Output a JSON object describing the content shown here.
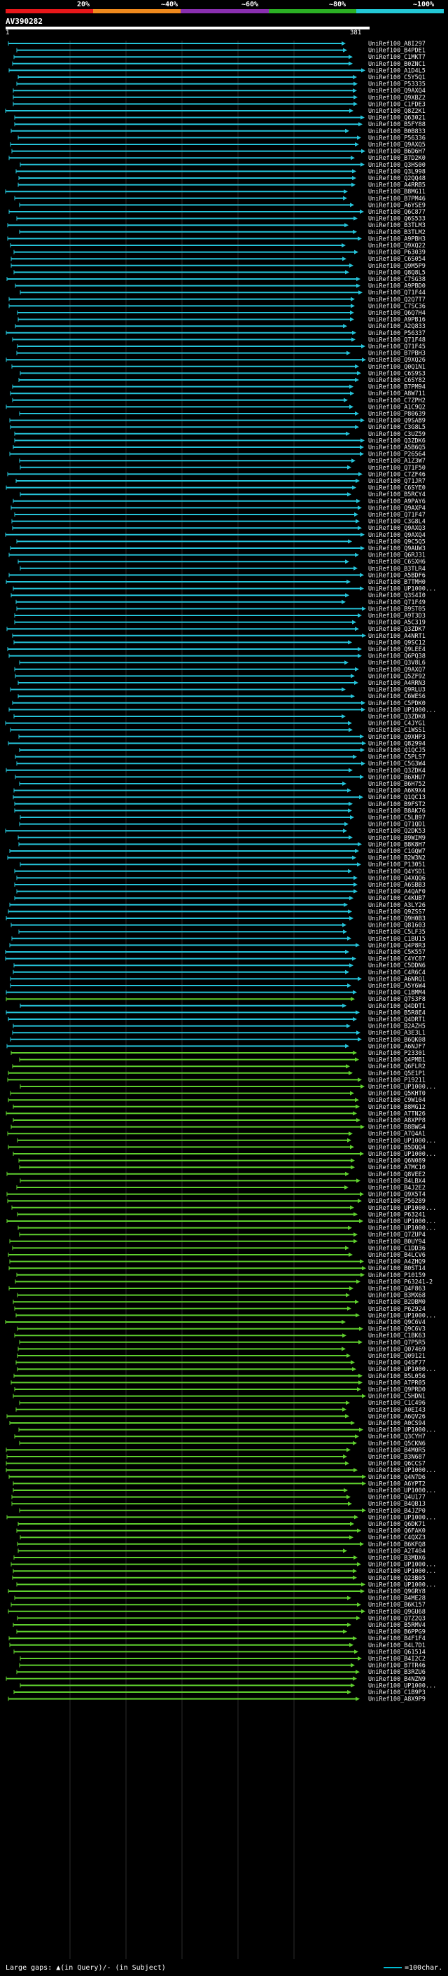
{
  "scale": {
    "labels": [
      "20%",
      "~40%",
      "~60%",
      "~80%",
      "~100%"
    ],
    "colors": [
      "#e8171a",
      "#f08a1d",
      "#8a2fb0",
      "#2bb024",
      "#23c7d6"
    ]
  },
  "query": {
    "title": "AV390282",
    "start": "1",
    "end": "381"
  },
  "colors": {
    "high": "#25c3d9",
    "mid": "#5fcf2e",
    "grid": "#2b2b2b"
  },
  "hits": [
    "UniRef100_A8I297",
    "UniRef100_B4PDE1",
    "UniRef100_C1MKT7",
    "UniRef100_B0ZNC1",
    "UniRef100_A1D4L5",
    "UniRef100_C5Y5Q1",
    "UniRef100_P53335",
    "UniRef100_Q9AXQ4",
    "UniRef100_Q9XBZ2",
    "UniRef100_C1FDE3",
    "UniRef100_Q8Z2K1",
    "UniRef100_Q63021",
    "UniRef100_B5FY88",
    "UniRef100_B0B833",
    "UniRef100_P56336",
    "UniRef100_Q9AXQ5",
    "UniRef100_B6D6H7",
    "UniRef100_B7D2K0",
    "UniRef100_Q3HS00",
    "UniRef100_Q3L998",
    "UniRef100_Q2QQ48",
    "UniRef100_A4RRB5",
    "UniRef100_B8MG11",
    "UniRef100_B7PM46",
    "UniRef100_A6YSE9",
    "UniRef100_Q6C877",
    "UniRef100_Q6S533",
    "UniRef100_B3TLM3",
    "UniRef100_B3TLM2",
    "UniRef100_A9PBH3",
    "UniRef100_Q9XQ22",
    "UniRef100_P63039",
    "UniRef100_C6S054",
    "UniRef100_Q9M5P9",
    "UniRef100_Q8Q8L5",
    "UniRef100_C7SG38",
    "UniRef100_A9PBD0",
    "UniRef100_Q71F44",
    "UniRef100_Q2Q7T7",
    "UniRef100_C7SC36",
    "UniRef100_Q6Q7H4",
    "UniRef100_A9PB16",
    "UniRef100_A2Q833",
    "UniRef100_P56337",
    "UniRef100_Q71F48",
    "UniRef100_Q71F45",
    "UniRef100_B7PBH3",
    "UniRef100_Q9XQ26",
    "UniRef100_Q0Q1N1",
    "UniRef100_C6S9S3",
    "UniRef100_C6SY82",
    "UniRef100_B7PM94",
    "UniRef100_A8W711",
    "UniRef100_C7ZPH2",
    "UniRef100_A1C9Q2",
    "UniRef100_P80639",
    "UniRef100_Q9SAB9",
    "UniRef100_C3G8L5",
    "UniRef100_C3UZ59",
    "UniRef100_Q3ZDK6",
    "UniRef100_A5B6Q5",
    "UniRef100_P26564",
    "UniRef100_A1Z3W7",
    "UniRef100_Q71F50",
    "UniRef100_C7ZF46",
    "UniRef100_Q71JR7",
    "UniRef100_C6SYE0",
    "UniRef100_B5RCY4",
    "UniRef100_A9PAY6",
    "UniRef100_Q9AXP4",
    "UniRef100_Q71F47",
    "UniRef100_C3G8L4",
    "UniRef100_Q9AXQ3",
    "UniRef100_Q9AXQ4",
    "UniRef100_Q9C5Q5",
    "UniRef100_Q9AUW3",
    "UniRef100_Q6RJ31",
    "UniRef100_C6SXH6",
    "UniRef100_B3TLR4",
    "UniRef100_A5BDF6",
    "UniRef100_B7TMH0",
    "UniRef100_UP1000...",
    "UniRef100_Q3S4I0",
    "UniRef100_Q71F49",
    "UniRef100_B9ST05",
    "UniRef100_A9T3D3",
    "UniRef100_A5C319",
    "UniRef100_Q3ZDK7",
    "UniRef100_A4NRT1",
    "UniRef100_Q9SC12",
    "UniRef100_Q9LEE4",
    "UniRef100_Q6PQ38",
    "UniRef100_Q3V8L6",
    "UniRef100_Q9AXQ7",
    "UniRef100_Q5ZF92",
    "UniRef100_A4RRN3",
    "UniRef100_Q9RLU3",
    "UniRef100_C6WES6",
    "UniRef100_C5PDK0",
    "UniRef100_UP1000...",
    "UniRef100_Q3ZDK8",
    "UniRef100_C4JYG1",
    "UniRef100_C1WSS1",
    "UniRef100_Q9XHP3",
    "UniRef100_Q82994",
    "UniRef100_Q1QCJ5",
    "UniRef100_C5PLS7",
    "UniRef100_C5G3W4",
    "UniRef100_Q3ZDK4",
    "UniRef100_B6XHU7",
    "UniRef100_B6H752",
    "UniRef100_A6K9X4",
    "UniRef100_Q1QC13",
    "UniRef100_B9FST2",
    "UniRef100_B8AK76",
    "UniRef100_C5LB97",
    "UniRef100_Q71QD1",
    "UniRef100_Q2DK53",
    "UniRef100_B9WIM9",
    "UniRef100_B8K8H7",
    "UniRef100_C1GQW7",
    "UniRef100_B2W3N2",
    "UniRef100_P13051",
    "UniRef100_Q4YSD1",
    "UniRef100_Q4XQQ6",
    "UniRef100_A6SBB3",
    "UniRef100_A4QAF0",
    "UniRef100_C4KUB7",
    "UniRef100_A3LY26",
    "UniRef100_Q9ZSS7",
    "UniRef100_Q9H0B3",
    "UniRef100_Q81603",
    "UniRef100_C5LF35",
    "UniRef100_C1BU15",
    "UniRef100_Q4P8R3",
    "UniRef100_C5K557",
    "UniRef100_C4YC87",
    "UniRef100_C5DDN6",
    "UniRef100_C4R6C4",
    "UniRef100_A6NRQ1",
    "UniRef100_A5Y6W4",
    "UniRef100_C1BMM4",
    "UniRef100_Q7S3F8",
    "UniRef100_Q4DDT1",
    "UniRef100_B5R8E4",
    "UniRef100_Q4DRT1",
    "UniRef100_B2AZH5",
    "UniRef100_A3E3L1",
    "UniRef100_B6QK08",
    "UniRef100_A6NJF7",
    "UniRef100_P23301",
    "UniRef100_Q4PMB1",
    "UniRef100_Q6FLR2",
    "UniRef100_Q5E1P1",
    "UniRef100_P19211",
    "UniRef100_UP1000...",
    "UniRef100_Q5KHT0",
    "UniRef100_C9W104",
    "UniRef100_B8MG12",
    "UniRef100_A7TN26",
    "UniRef100_A8XPP8",
    "UniRef100_B8BWG4",
    "UniRef100_A7Q4A1",
    "UniRef100_UP1000...",
    "UniRef100_B5DQQ4",
    "UniRef100_UP1000...",
    "UniRef100_Q6N089",
    "UniRef100_A7MC10",
    "UniRef100_Q8VEE2",
    "UniRef100_B4LBX4",
    "UniRef100_B4J2E2",
    "UniRef100_Q9X5T4",
    "UniRef100_P56289",
    "UniRef100_UP1000...",
    "UniRef100_P63241",
    "UniRef100_UP1000...",
    "UniRef100_UP1000...",
    "UniRef100_Q7ZUP4",
    "UniRef100_B0UY94",
    "UniRef100_C1DD36",
    "UniRef100_B4LCV6",
    "UniRef100_A4ZHQ9",
    "UniRef100_B0ST14",
    "UniRef100_P10159",
    "UniRef100_P63241-2",
    "UniRef100_Q4F863",
    "UniRef100_B3MX68",
    "UniRef100_B2DBM0",
    "UniRef100_P62924",
    "UniRef100_UP1000...",
    "UniRef100_Q9C6V4",
    "UniRef100_Q9C6V3",
    "UniRef100_C1BK63",
    "UniRef100_Q7P5R5",
    "UniRef100_Q07469",
    "UniRef100_Q09121",
    "UniRef100_Q4SF77",
    "UniRef100_UP1000...",
    "UniRef100_B5L056",
    "UniRef100_A7PR05",
    "UniRef100_Q9PRD0",
    "UniRef100_C5HDN1",
    "UniRef100_C1C496",
    "UniRef100_A0EI43",
    "UniRef100_A6QV26",
    "UniRef100_A0CS94",
    "UniRef100_UP1000...",
    "UniRef100_Q3CYH7",
    "UniRef100_Q5CKN6",
    "UniRef100_B4M0R5",
    "UniRef100_B3N687",
    "UniRef100_Q6CCS7",
    "UniRef100_UP1000...",
    "UniRef100_Q4N7D6",
    "UniRef100_A6YPT2",
    "UniRef100_UP1000...",
    "UniRef100_Q4U177",
    "UniRef100_B4QB13",
    "UniRef100_B4JZP0",
    "UniRef100_UP1000...",
    "UniRef100_Q6DK71",
    "UniRef100_Q6FAK0",
    "UniRef100_C4QXZ3",
    "UniRef100_B6KFQ8",
    "UniRef100_A2T404",
    "UniRef100_B3MDX6",
    "UniRef100_UP1000...",
    "UniRef100_UP1000...",
    "UniRef100_Q23B05",
    "UniRef100_UP1000...",
    "UniRef100_Q9GRY8",
    "UniRef100_B4ME28",
    "UniRef100_B6K157",
    "UniRef100_Q9GU68",
    "UniRef100_Q7Z2Q3",
    "UniRef100_B5RMV4",
    "UniRef100_B6PPG9",
    "UniRef100_B4F1F4",
    "UniRef100_B4L7D1",
    "UniRef100_Q61514",
    "UniRef100_B4I2C2",
    "UniRef100_B7TR46",
    "UniRef100_B3RZU6",
    "UniRef100_B4NZN9",
    "UniRef100_UP1000...",
    "UniRef100_C1B9P3",
    "UniRef100_A8X9P9"
  ],
  "legend": {
    "left": "Large gaps: ▲(in Query)/- (in Subject)",
    "right": "=100char."
  }
}
